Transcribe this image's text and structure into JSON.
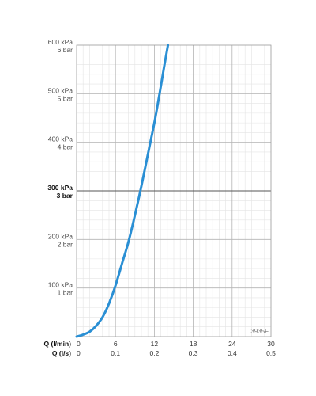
{
  "chart_data": {
    "type": "line",
    "code_label": "3935F",
    "x_axis_lpm": {
      "label": "Q (l/min)",
      "ticks": [
        "0",
        "6",
        "12",
        "18",
        "24",
        "30"
      ],
      "range": [
        0,
        30
      ]
    },
    "x_axis_ls": {
      "label": "Q (l/s)",
      "ticks": [
        "0",
        "0.1",
        "0.2",
        "0.3",
        "0.4",
        "0.5"
      ]
    },
    "y_axis": {
      "range": [
        0,
        600
      ],
      "ticks": [
        {
          "value": 100,
          "kpa": "100 kPa",
          "bar": "1 bar",
          "emphasis": false
        },
        {
          "value": 200,
          "kpa": "200 kPa",
          "bar": "2 bar",
          "emphasis": false
        },
        {
          "value": 300,
          "kpa": "300 kPa",
          "bar": "3 bar",
          "emphasis": true
        },
        {
          "value": 400,
          "kpa": "400 kPa",
          "bar": "4 bar",
          "emphasis": false
        },
        {
          "value": 500,
          "kpa": "500 kPa",
          "bar": "5 bar",
          "emphasis": false
        },
        {
          "value": 600,
          "kpa": "600 kPa",
          "bar": "6 bar",
          "emphasis": false
        }
      ]
    },
    "grid": true,
    "series": [
      {
        "color": "#2a8fd4",
        "points": [
          [
            0,
            0
          ],
          [
            1,
            4
          ],
          [
            2,
            10
          ],
          [
            3,
            22
          ],
          [
            4,
            40
          ],
          [
            5,
            68
          ],
          [
            6,
            105
          ],
          [
            7,
            150
          ],
          [
            8,
            195
          ],
          [
            9,
            250
          ],
          [
            10,
            310
          ],
          [
            11,
            375
          ],
          [
            12,
            440
          ],
          [
            12.8,
            500
          ],
          [
            13.5,
            555
          ],
          [
            14.1,
            600
          ]
        ]
      }
    ]
  }
}
